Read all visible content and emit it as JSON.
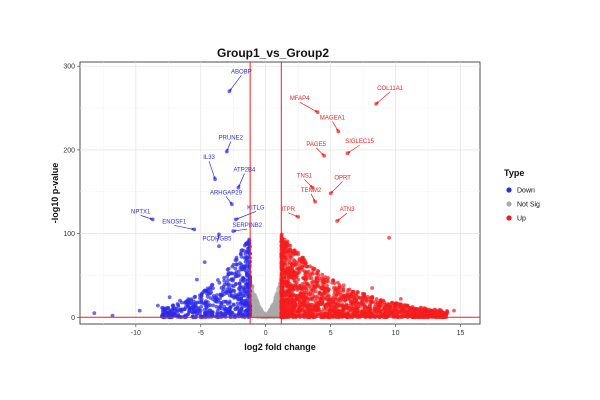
{
  "chart_data": {
    "type": "scatter",
    "title": "Group1_vs_Group2",
    "xlabel": "log2 fold change",
    "ylabel": "-log10 p-value",
    "xlim": [
      -14.3,
      16.5
    ],
    "ylim": [
      -8,
      305
    ],
    "xticks": [
      -10,
      -5,
      0,
      5,
      10,
      15
    ],
    "yticks": [
      0,
      100,
      200,
      300
    ],
    "grid": true,
    "fc_threshold_lines": [
      -1.2,
      1.2
    ],
    "pvalue_threshold_line": 0,
    "legend": {
      "title": "Type",
      "placement": "right",
      "entries": [
        {
          "label": "Down",
          "color": "#2b2bea"
        },
        {
          "label": "Not Sig",
          "color": "#aaaaaa"
        },
        {
          "label": "Up",
          "color": "#f41c1c"
        }
      ]
    },
    "labeled_genes": [
      {
        "gene": "ABOBP",
        "x": -2.8,
        "y": 270,
        "group": "Down"
      },
      {
        "gene": "PRUNE2",
        "x": -3.0,
        "y": 198,
        "group": "Down"
      },
      {
        "gene": "IL33",
        "x": -3.9,
        "y": 165,
        "group": "Down"
      },
      {
        "gene": "ATP2B4",
        "x": -2.1,
        "y": 155,
        "group": "Down"
      },
      {
        "gene": "ARHGAP29",
        "x": -2.6,
        "y": 135,
        "group": "Down"
      },
      {
        "gene": "KITLG",
        "x": -2.3,
        "y": 117,
        "group": "Down"
      },
      {
        "gene": "NPTX1",
        "x": -8.7,
        "y": 117,
        "group": "Down"
      },
      {
        "gene": "ENOSF1",
        "x": -5.5,
        "y": 105,
        "group": "Down"
      },
      {
        "gene": "SERPINB2",
        "x": -2.5,
        "y": 103,
        "group": "Down"
      },
      {
        "gene": "PCDHGB5",
        "x": -3.6,
        "y": 99,
        "group": "Down"
      },
      {
        "gene": "COL11A1",
        "x": 8.5,
        "y": 255,
        "group": "Up"
      },
      {
        "gene": "MFAP4",
        "x": 4.0,
        "y": 245,
        "group": "Up"
      },
      {
        "gene": "MAGEA1",
        "x": 5.6,
        "y": 222,
        "group": "Up"
      },
      {
        "gene": "SIGLEC15",
        "x": 6.3,
        "y": 196,
        "group": "Up"
      },
      {
        "gene": "PAGE5",
        "x": 4.5,
        "y": 193,
        "group": "Up"
      },
      {
        "gene": "TNS1",
        "x": 3.6,
        "y": 155,
        "group": "Up"
      },
      {
        "gene": "OPRT",
        "x": 5.0,
        "y": 148,
        "group": "Up"
      },
      {
        "gene": "TENM2",
        "x": 3.8,
        "y": 138,
        "group": "Up"
      },
      {
        "gene": "ITPR",
        "x": 2.5,
        "y": 120,
        "group": "Up"
      },
      {
        "gene": "ATN3",
        "x": 5.5,
        "y": 115,
        "group": "Up"
      }
    ],
    "notable_points": [
      {
        "x": -13.2,
        "y": 5,
        "group": "Down"
      },
      {
        "x": -11.8,
        "y": 2,
        "group": "Down"
      },
      {
        "x": -9.7,
        "y": 8,
        "group": "Down"
      },
      {
        "x": -8.3,
        "y": 14,
        "group": "Down"
      },
      {
        "x": -6.6,
        "y": 20,
        "group": "Down"
      },
      {
        "x": -7.4,
        "y": 24,
        "group": "Down"
      },
      {
        "x": -5.3,
        "y": 45,
        "group": "Down"
      },
      {
        "x": -4.7,
        "y": 66,
        "group": "Down"
      },
      {
        "x": -3.6,
        "y": 85,
        "group": "Down"
      },
      {
        "x": 9.5,
        "y": 95,
        "group": "Up"
      },
      {
        "x": 7.6,
        "y": 28,
        "group": "Up"
      },
      {
        "x": 8.2,
        "y": 35,
        "group": "Up"
      },
      {
        "x": 10.4,
        "y": 22,
        "group": "Up"
      },
      {
        "x": 12.3,
        "y": 6,
        "group": "Up"
      },
      {
        "x": 14.5,
        "y": 8,
        "group": "Up"
      },
      {
        "x": 11.6,
        "y": 4,
        "group": "Up"
      }
    ],
    "point_cloud": {
      "Down": {
        "count": 600,
        "x_range": [
          -8,
          -1.2
        ],
        "y_max": 100
      },
      "Not Sig": {
        "count": 500,
        "x_range": [
          -1.2,
          1.2
        ],
        "y_max": 45
      },
      "Up": {
        "count": 1700,
        "x_range": [
          1.2,
          14
        ],
        "y_max": 100
      }
    }
  }
}
